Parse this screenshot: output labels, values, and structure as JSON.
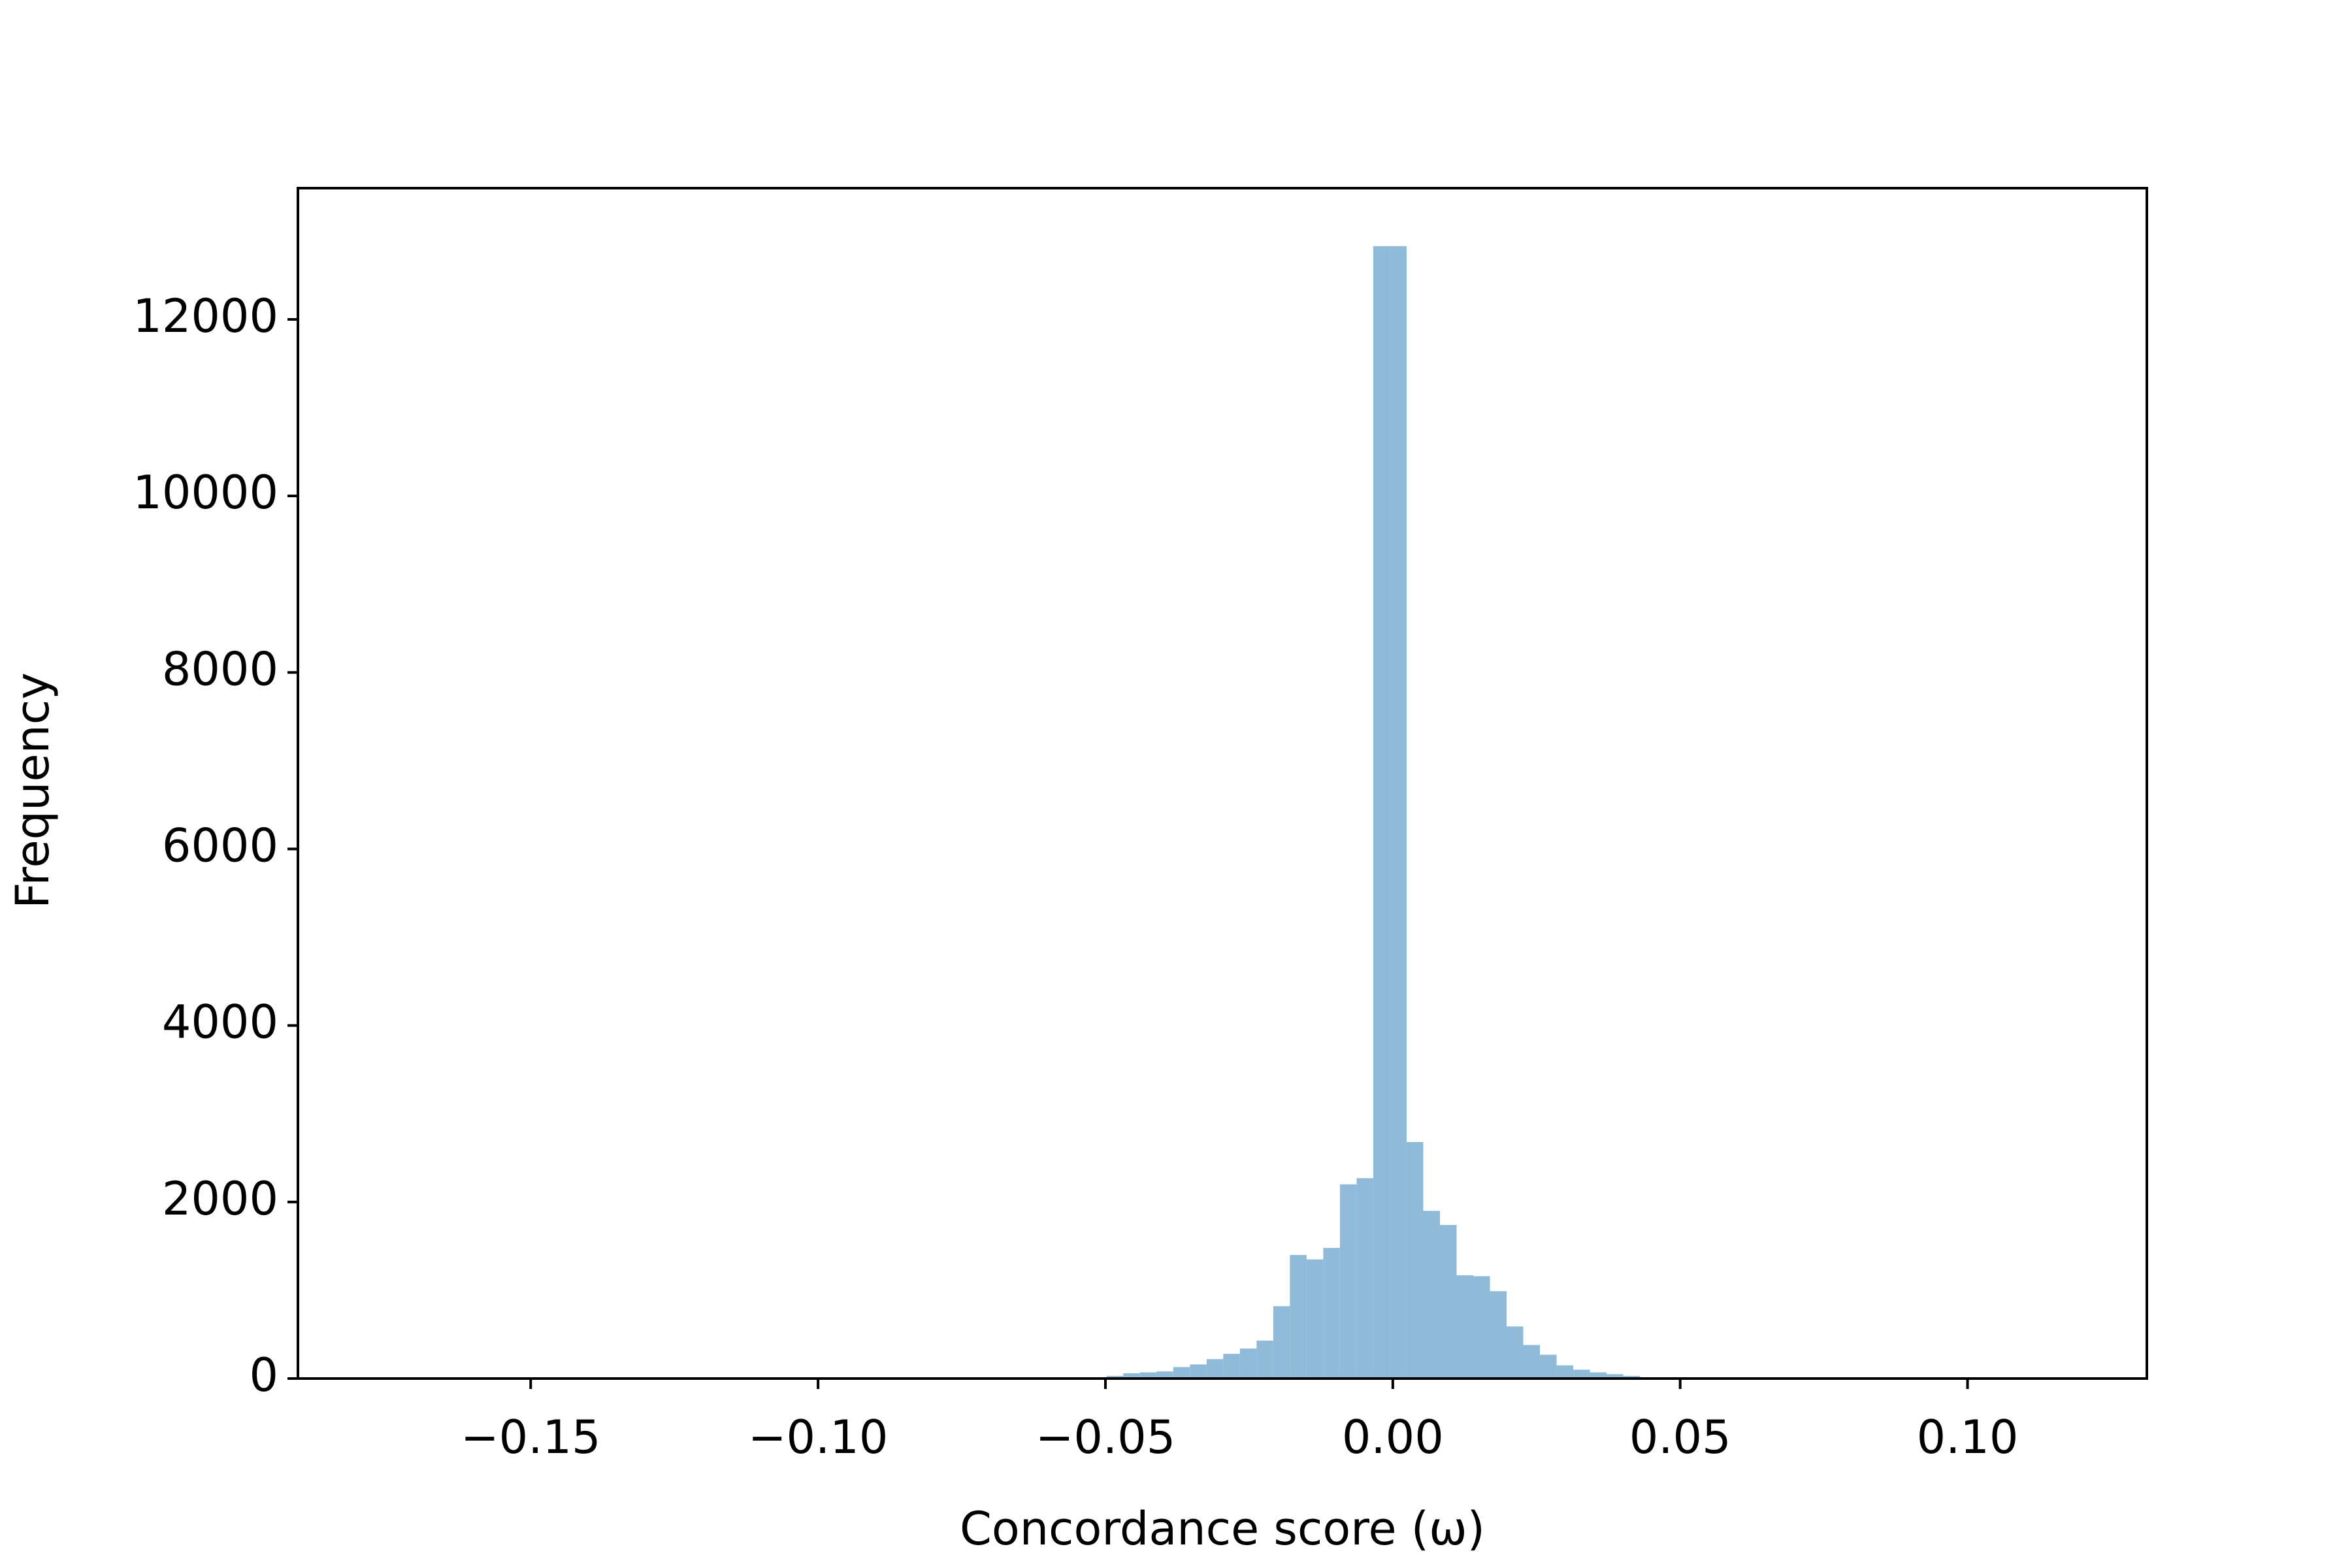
{
  "chart_data": {
    "type": "histogram",
    "xlabel": "Concordance score (ω)",
    "ylabel": "Frequency",
    "color": "#8fbbd9",
    "bins": [
      -0.0498,
      -0.0469,
      -0.044,
      -0.0411,
      -0.0382,
      -0.0353,
      -0.0324,
      -0.0295,
      -0.0266,
      -0.0237,
      -0.0208,
      -0.0179,
      -0.015,
      -0.0121,
      -0.0092,
      -0.0063,
      -0.0034,
      -0.0005,
      0.0024,
      0.0053,
      0.0082,
      0.0111,
      0.014,
      0.0169,
      0.0198,
      0.0227,
      0.0256,
      0.0285,
      0.0314,
      0.0343,
      0.0372,
      0.0401,
      0.043
    ],
    "counts": [
      30,
      60,
      70,
      80,
      130,
      160,
      220,
      280,
      340,
      430,
      820,
      1400,
      1350,
      1480,
      2200,
      2270,
      12830,
      12830,
      2680,
      1900,
      1740,
      1170,
      1160,
      990,
      590,
      380,
      270,
      150,
      100,
      70,
      50,
      30
    ],
    "xlim": [
      -0.1905,
      0.1312
    ],
    "ylim": [
      0,
      13487
    ],
    "xticks": [
      {
        "value": -0.15,
        "label": "−0.15"
      },
      {
        "value": -0.1,
        "label": "−0.10"
      },
      {
        "value": -0.05,
        "label": "−0.05"
      },
      {
        "value": 0,
        "label": "0.00"
      },
      {
        "value": 0.05,
        "label": "0.05"
      },
      {
        "value": 0.1,
        "label": "0.10"
      }
    ],
    "yticks": [
      0,
      2000,
      4000,
      6000,
      8000,
      10000,
      12000
    ],
    "grid": false
  }
}
